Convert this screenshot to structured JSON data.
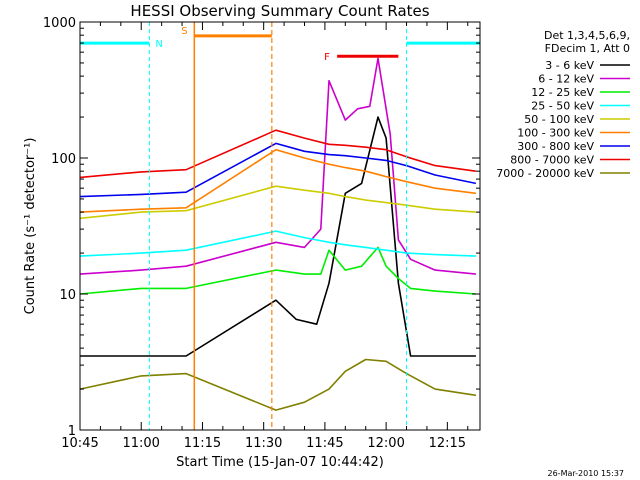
{
  "chart_data": {
    "type": "line",
    "title": "HESSI Observing Summary Count Rates",
    "xlabel": "Start Time (15-Jan-07 10:44:42)",
    "ylabel": "Count Rate (s⁻¹ detector⁻¹)",
    "xlim": [
      "10:45",
      "12:23"
    ],
    "ylim": [
      1,
      1000
    ],
    "yscale": "log",
    "x_ticks": [
      "10:45",
      "11:00",
      "11:15",
      "11:30",
      "11:45",
      "12:00",
      "12:15"
    ],
    "y_ticks": [
      "1",
      "10",
      "100",
      "1000"
    ],
    "legend_header": [
      "Det 1,3,4,5,6,9,",
      "FDecim 1, Att 0"
    ],
    "legend_position": "top-right outside",
    "footer_stamp": "26-Mar-2010 15:37",
    "series": [
      {
        "name": "3 - 6 keV",
        "color": "#000000",
        "x": [
          "10:45",
          "11:00",
          "11:11",
          "11:33",
          "11:38",
          "11:43",
          "11:46",
          "11:50",
          "11:54",
          "11:58",
          "12:00",
          "12:03",
          "12:06",
          "12:12",
          "12:22"
        ],
        "values": [
          3.5,
          3.5,
          3.5,
          9,
          6.5,
          6,
          12,
          55,
          65,
          200,
          140,
          12,
          3.5,
          3.5,
          3.5
        ]
      },
      {
        "name": "6 - 12 keV",
        "color": "#cc00cc",
        "x": [
          "10:45",
          "11:00",
          "11:11",
          "11:33",
          "11:40",
          "11:44",
          "11:46",
          "11:50",
          "11:53",
          "11:56",
          "11:58",
          "12:01",
          "12:03",
          "12:06",
          "12:12",
          "12:22"
        ],
        "values": [
          14,
          15,
          16,
          24,
          22,
          30,
          370,
          190,
          230,
          240,
          540,
          150,
          25,
          18,
          15,
          14
        ]
      },
      {
        "name": "12 - 25 keV",
        "color": "#00ee00",
        "x": [
          "10:45",
          "11:00",
          "11:11",
          "11:33",
          "11:40",
          "11:44",
          "11:46",
          "11:50",
          "11:54",
          "11:58",
          "12:00",
          "12:03",
          "12:06",
          "12:12",
          "12:22"
        ],
        "values": [
          10,
          11,
          11,
          15,
          14,
          14,
          21,
          15,
          16,
          22,
          16,
          13,
          11,
          10.5,
          10
        ]
      },
      {
        "name": "25 - 50 keV",
        "color": "#00ffff",
        "x": [
          "10:45",
          "11:00",
          "11:11",
          "11:33",
          "11:40",
          "11:46",
          "11:50",
          "11:55",
          "12:00",
          "12:05",
          "12:12",
          "12:22"
        ],
        "values": [
          19,
          20,
          21,
          29,
          26,
          24,
          23,
          22,
          21,
          20,
          19.5,
          19
        ]
      },
      {
        "name": "50 - 100 keV",
        "color": "#cccc00",
        "x": [
          "10:45",
          "11:00",
          "11:11",
          "11:33",
          "11:40",
          "11:46",
          "11:50",
          "11:55",
          "12:00",
          "12:05",
          "12:12",
          "12:22"
        ],
        "values": [
          36,
          40,
          41,
          62,
          58,
          55,
          52,
          49,
          47,
          45,
          42,
          40
        ]
      },
      {
        "name": "100 - 300 keV",
        "color": "#ff8000",
        "x": [
          "10:45",
          "11:00",
          "11:11",
          "11:33",
          "11:40",
          "11:46",
          "11:50",
          "11:55",
          "12:00",
          "12:05",
          "12:12",
          "12:22"
        ],
        "values": [
          40,
          42,
          43,
          115,
          100,
          90,
          85,
          80,
          73,
          67,
          60,
          55
        ]
      },
      {
        "name": "300 - 800 keV",
        "color": "#0000ee",
        "x": [
          "10:45",
          "11:00",
          "11:11",
          "11:33",
          "11:40",
          "11:46",
          "11:50",
          "11:55",
          "12:00",
          "12:05",
          "12:12",
          "12:22"
        ],
        "values": [
          52,
          54,
          56,
          128,
          112,
          106,
          104,
          100,
          96,
          88,
          75,
          65
        ]
      },
      {
        "name": "800 - 7000 keV",
        "color": "#ee0000",
        "x": [
          "10:45",
          "11:00",
          "11:11",
          "11:33",
          "11:40",
          "11:46",
          "11:50",
          "11:55",
          "12:00",
          "12:05",
          "12:12",
          "12:22"
        ],
        "values": [
          72,
          79,
          82,
          160,
          140,
          126,
          124,
          120,
          115,
          102,
          88,
          80
        ]
      },
      {
        "name": "7000 - 20000 keV",
        "color": "#808000",
        "x": [
          "10:45",
          "11:00",
          "11:11",
          "11:33",
          "11:40",
          "11:46",
          "11:50",
          "11:55",
          "12:00",
          "12:05",
          "12:12",
          "12:22"
        ],
        "values": [
          2.0,
          2.5,
          2.6,
          1.4,
          1.6,
          2.0,
          2.7,
          3.3,
          3.2,
          2.6,
          2.0,
          1.8
        ]
      }
    ],
    "annotations": [
      {
        "label": "N",
        "color": "#00ffff",
        "type": "night",
        "intervals": [
          [
            "10:45",
            "11:02"
          ],
          [
            "12:05",
            "12:23"
          ]
        ],
        "bar_value": 700
      },
      {
        "label": "S",
        "color": "#ff8000",
        "type": "saa",
        "intervals": [
          [
            "11:13",
            "11:32"
          ]
        ],
        "bar_value": 790
      },
      {
        "label": "F",
        "color": "#ee0000",
        "type": "flare",
        "intervals": [
          [
            "11:48",
            "12:03"
          ]
        ],
        "bar_value": 560
      }
    ]
  }
}
